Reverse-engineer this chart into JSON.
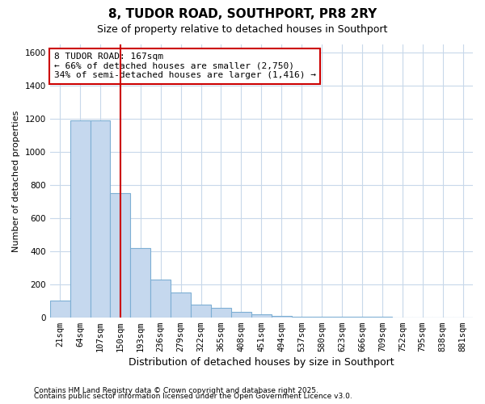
{
  "title": "8, TUDOR ROAD, SOUTHPORT, PR8 2RY",
  "subtitle": "Size of property relative to detached houses in Southport",
  "xlabel": "Distribution of detached houses by size in Southport",
  "ylabel": "Number of detached properties",
  "categories": [
    "21sqm",
    "64sqm",
    "107sqm",
    "150sqm",
    "193sqm",
    "236sqm",
    "279sqm",
    "322sqm",
    "365sqm",
    "408sqm",
    "451sqm",
    "494sqm",
    "537sqm",
    "580sqm",
    "623sqm",
    "666sqm",
    "709sqm",
    "752sqm",
    "795sqm",
    "838sqm",
    "881sqm"
  ],
  "values": [
    100,
    1190,
    1190,
    750,
    420,
    230,
    150,
    75,
    55,
    35,
    20,
    10,
    5,
    3,
    2,
    1,
    1,
    0,
    0,
    0,
    0
  ],
  "bar_color": "#c5d8ee",
  "bar_edge_color": "#7dafd4",
  "vline_x_index": 3,
  "vline_color": "#cc0000",
  "annotation_text": "8 TUDOR ROAD: 167sqm\n← 66% of detached houses are smaller (2,750)\n34% of semi-detached houses are larger (1,416) →",
  "annotation_box_color": "#ffffff",
  "annotation_box_edge": "#cc0000",
  "ylim": [
    0,
    1650
  ],
  "yticks": [
    0,
    200,
    400,
    600,
    800,
    1000,
    1200,
    1400,
    1600
  ],
  "footer1": "Contains HM Land Registry data © Crown copyright and database right 2025.",
  "footer2": "Contains public sector information licensed under the Open Government Licence v3.0.",
  "bg_color": "#ffffff",
  "plot_bg_color": "#ffffff",
  "grid_color": "#c8d8ea",
  "title_fontsize": 11,
  "subtitle_fontsize": 9,
  "xlabel_fontsize": 9,
  "ylabel_fontsize": 8,
  "tick_fontsize": 7.5,
  "annotation_fontsize": 8,
  "footer_fontsize": 6.5
}
